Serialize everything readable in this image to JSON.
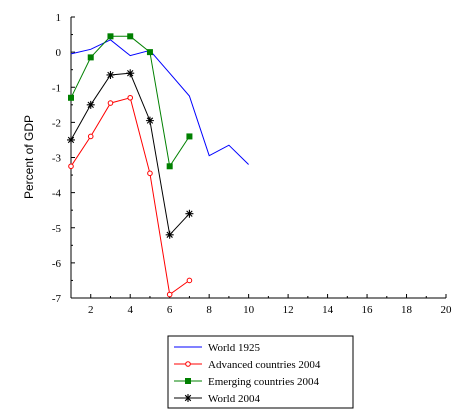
{
  "chart_data": {
    "type": "line",
    "title": "",
    "xlabel": "",
    "ylabel": "Percent of GDP",
    "xlim": [
      1,
      20
    ],
    "ylim": [
      -7,
      1
    ],
    "xticks": [
      2,
      4,
      6,
      8,
      10,
      12,
      14,
      16,
      18,
      20
    ],
    "yticks": [
      1,
      0,
      -1,
      -2,
      -3,
      -4,
      -5,
      -6,
      -7
    ],
    "grid": false,
    "legend_position": "bottom-center",
    "series": [
      {
        "name": "World 1925",
        "color": "#0000ff",
        "marker": "none",
        "x": [
          1,
          2,
          3,
          4,
          5,
          6,
          7,
          8,
          9,
          10
        ],
        "y": [
          -0.05,
          0.08,
          0.35,
          -0.1,
          0.05,
          -0.6,
          -1.25,
          -2.95,
          -2.65,
          -3.2
        ]
      },
      {
        "name": "Advanced countries 2004",
        "color": "#ff0000",
        "marker": "circle",
        "x": [
          1,
          2,
          3,
          4,
          5,
          6,
          7
        ],
        "y": [
          -3.25,
          -2.4,
          -1.45,
          -1.3,
          -3.45,
          -6.9,
          -6.5
        ]
      },
      {
        "name": "Emerging countries 2004",
        "color": "#008000",
        "marker": "square",
        "x": [
          1,
          2,
          3,
          4,
          5,
          6,
          7
        ],
        "y": [
          -1.3,
          -0.15,
          0.45,
          0.45,
          0.0,
          -3.25,
          -2.4
        ]
      },
      {
        "name": "World 2004",
        "color": "#000000",
        "marker": "star",
        "x": [
          1,
          2,
          3,
          4,
          5,
          6,
          7
        ],
        "y": [
          -2.5,
          -1.5,
          -0.65,
          -0.6,
          -1.95,
          -5.2,
          -4.6
        ]
      }
    ]
  }
}
